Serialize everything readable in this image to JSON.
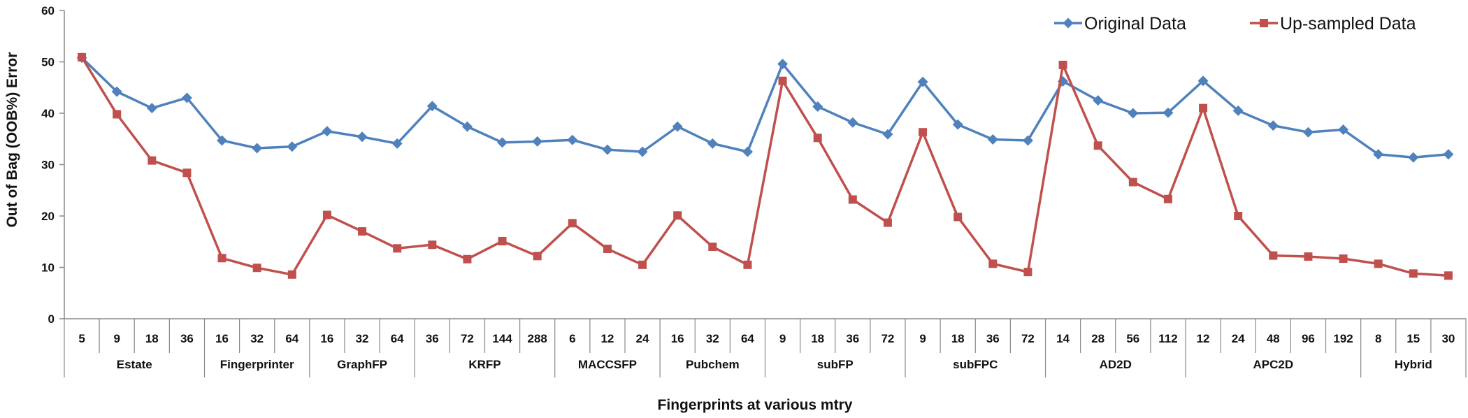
{
  "chart_data": {
    "type": "line",
    "title": "",
    "xlabel": "Fingerprints at various  mtry",
    "ylabel": "Out of Bag (OOB%) Error",
    "ylim": [
      0,
      60
    ],
    "yticks": [
      "0",
      "10",
      "20",
      "30",
      "40",
      "50",
      "60"
    ],
    "grid": false,
    "legend_position": "top-right",
    "groups": [
      {
        "name": "Estate",
        "ticks": [
          "5",
          "9",
          "18",
          "36"
        ]
      },
      {
        "name": "Fingerprinter",
        "ticks": [
          "16",
          "32",
          "64"
        ]
      },
      {
        "name": "GraphFP",
        "ticks": [
          "16",
          "32",
          "64"
        ]
      },
      {
        "name": "KRFP",
        "ticks": [
          "36",
          "72",
          "144",
          "288"
        ]
      },
      {
        "name": "MACCSFP",
        "ticks": [
          "6",
          "12",
          "24"
        ]
      },
      {
        "name": "Pubchem",
        "ticks": [
          "16",
          "32",
          "64"
        ]
      },
      {
        "name": "subFP",
        "ticks": [
          "9",
          "18",
          "36",
          "72"
        ]
      },
      {
        "name": "subFPC",
        "ticks": [
          "9",
          "18",
          "36",
          "72"
        ]
      },
      {
        "name": "AD2D",
        "ticks": [
          "14",
          "28",
          "56",
          "112"
        ]
      },
      {
        "name": "APC2D",
        "ticks": [
          "12",
          "24",
          "48",
          "96",
          "192"
        ]
      },
      {
        "name": "Hybrid",
        "ticks": [
          "8",
          "15",
          "30"
        ]
      }
    ],
    "series": [
      {
        "name": "Original Data",
        "color": "#4F81BD",
        "marker": "diamond",
        "values": [
          50.8,
          44.2,
          41.0,
          43.0,
          34.7,
          33.2,
          33.5,
          36.5,
          35.4,
          34.1,
          41.4,
          37.4,
          34.3,
          34.5,
          34.8,
          32.9,
          32.5,
          37.4,
          34.1,
          32.5,
          49.6,
          41.3,
          38.2,
          35.9,
          46.1,
          37.8,
          34.9,
          34.7,
          46.2,
          42.5,
          40.0,
          40.1,
          46.3,
          40.5,
          37.6,
          36.3,
          36.8,
          32.0,
          31.4,
          32.0
        ]
      },
      {
        "name": "Up-sampled Data",
        "color": "#C0504D",
        "marker": "square",
        "values": [
          50.9,
          39.8,
          30.8,
          28.4,
          11.8,
          9.9,
          8.6,
          20.2,
          17.0,
          13.7,
          14.4,
          11.6,
          15.1,
          12.2,
          18.6,
          13.6,
          10.5,
          20.1,
          14.0,
          10.5,
          46.3,
          35.2,
          23.2,
          18.7,
          36.3,
          19.8,
          10.7,
          9.1,
          49.4,
          33.7,
          26.6,
          23.3,
          41.0,
          20.0,
          12.3,
          12.1,
          11.7,
          10.7,
          8.8,
          8.4
        ]
      }
    ]
  }
}
